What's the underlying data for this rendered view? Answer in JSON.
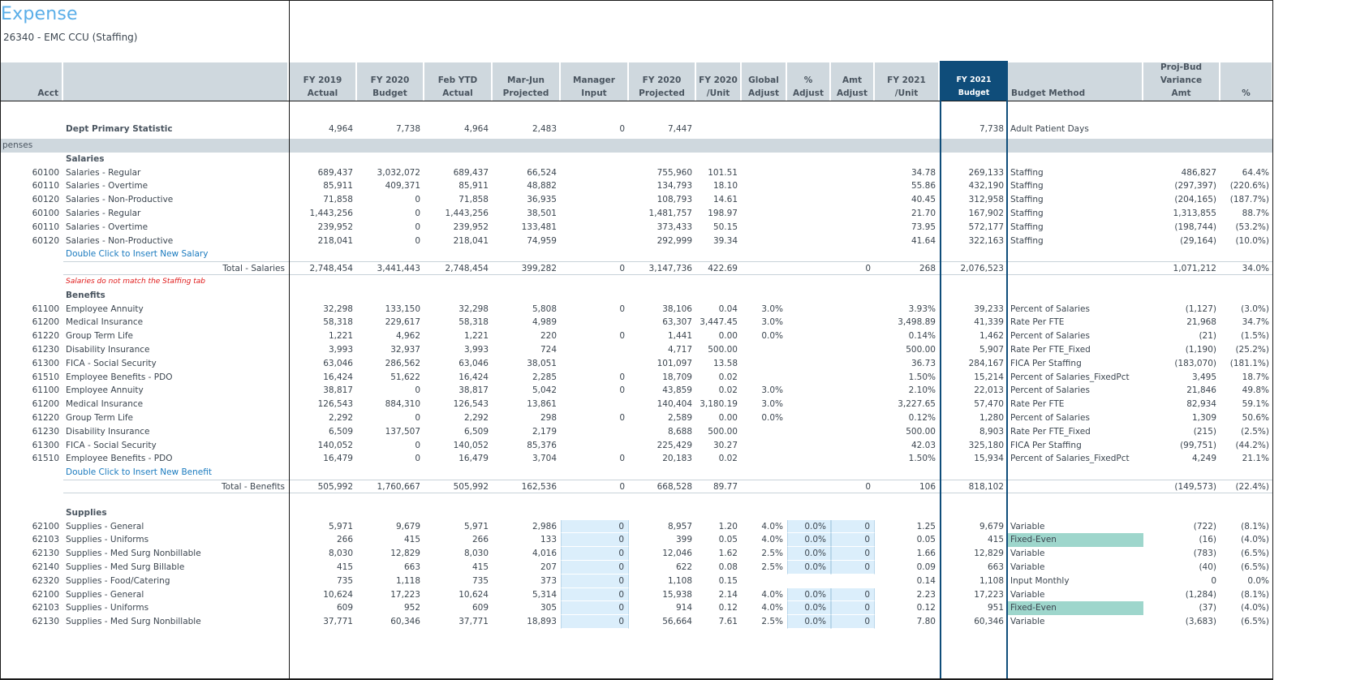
{
  "title": "Expense",
  "subtitle": "26340 - EMC CCU (Staffing)",
  "colors": {
    "title": "#5aaee8",
    "header_bg": "#cfd8de",
    "selected_header_bg": "#0f4d7a",
    "input_cell_bg": "#dbeefb",
    "fixed_even_bg": "#9ed6cc",
    "link": "#1b7bbf",
    "warning": "#e01b1b"
  },
  "columns": [
    {
      "key": "acct",
      "label1": "",
      "label2": "Acct"
    },
    {
      "key": "desc",
      "label1": "",
      "label2": ""
    },
    {
      "key": "fy19",
      "label1": "FY 2019",
      "label2": "Actual"
    },
    {
      "key": "fy20b",
      "label1": "FY 2020",
      "label2": "Budget"
    },
    {
      "key": "feb",
      "label1": "Feb YTD",
      "label2": "Actual"
    },
    {
      "key": "marjun",
      "label1": "Mar-Jun",
      "label2": "Projected"
    },
    {
      "key": "mgr",
      "label1": "Manager",
      "label2": "Input"
    },
    {
      "key": "fy20p",
      "label1": "FY 2020",
      "label2": "Projected"
    },
    {
      "key": "fy20u",
      "label1": "FY 2020",
      "label2": "/Unit"
    },
    {
      "key": "gadj",
      "label1": "Global",
      "label2": "Adjust"
    },
    {
      "key": "padj",
      "label1": "%",
      "label2": "Adjust"
    },
    {
      "key": "aadj",
      "label1": "Amt",
      "label2": "Adjust"
    },
    {
      "key": "fy21u",
      "label1": "FY 2021",
      "label2": "/Unit"
    },
    {
      "key": "fy21b",
      "label1": "FY 2021",
      "label2": "Budget"
    },
    {
      "key": "method",
      "label1": "",
      "label2": "Budget Method"
    },
    {
      "key": "var",
      "label0": "Proj-Bud",
      "label1": "Variance",
      "label2": "Amt"
    },
    {
      "key": "varp",
      "label1": "",
      "label2": "%"
    }
  ],
  "primary_statistic": {
    "label": "Dept Primary Statistic",
    "fy19": "4,964",
    "fy20b": "7,738",
    "feb": "4,964",
    "marjun": "2,483",
    "mgr": "0",
    "fy20p": "7,447",
    "fy21b": "7,738",
    "method": "Adult Patient Days"
  },
  "band_label": "penses",
  "salaries": {
    "title": "Salaries",
    "rows": [
      {
        "acct": "60100",
        "desc": "Salaries - Regular",
        "fy19": "689,437",
        "fy20b": "3,032,072",
        "feb": "689,437",
        "marjun": "66,524",
        "mgr": "",
        "fy20p": "755,960",
        "fy20u": "101.51",
        "gadj": "",
        "padj": "",
        "aadj": "",
        "fy21u": "34.78",
        "fy21b": "269,133",
        "method": "Staffing",
        "var": "486,827",
        "varp": "64.4%"
      },
      {
        "acct": "60110",
        "desc": "Salaries - Overtime",
        "fy19": "85,911",
        "fy20b": "409,371",
        "feb": "85,911",
        "marjun": "48,882",
        "mgr": "",
        "fy20p": "134,793",
        "fy20u": "18.10",
        "gadj": "",
        "padj": "",
        "aadj": "",
        "fy21u": "55.86",
        "fy21b": "432,190",
        "method": "Staffing",
        "var": "(297,397)",
        "varp": "(220.6%)"
      },
      {
        "acct": "60120",
        "desc": "Salaries - Non-Productive",
        "fy19": "71,858",
        "fy20b": "0",
        "feb": "71,858",
        "marjun": "36,935",
        "mgr": "",
        "fy20p": "108,793",
        "fy20u": "14.61",
        "gadj": "",
        "padj": "",
        "aadj": "",
        "fy21u": "40.45",
        "fy21b": "312,958",
        "method": "Staffing",
        "var": "(204,165)",
        "varp": "(187.7%)"
      },
      {
        "acct": "60100",
        "desc": "Salaries - Regular",
        "fy19": "1,443,256",
        "fy20b": "0",
        "feb": "1,443,256",
        "marjun": "38,501",
        "mgr": "",
        "fy20p": "1,481,757",
        "fy20u": "198.97",
        "gadj": "",
        "padj": "",
        "aadj": "",
        "fy21u": "21.70",
        "fy21b": "167,902",
        "method": "Staffing",
        "var": "1,313,855",
        "varp": "88.7%"
      },
      {
        "acct": "60110",
        "desc": "Salaries - Overtime",
        "fy19": "239,952",
        "fy20b": "0",
        "feb": "239,952",
        "marjun": "133,481",
        "mgr": "",
        "fy20p": "373,433",
        "fy20u": "50.15",
        "gadj": "",
        "padj": "",
        "aadj": "",
        "fy21u": "73.95",
        "fy21b": "572,177",
        "method": "Staffing",
        "var": "(198,744)",
        "varp": "(53.2%)"
      },
      {
        "acct": "60120",
        "desc": "Salaries - Non-Productive",
        "fy19": "218,041",
        "fy20b": "0",
        "feb": "218,041",
        "marjun": "74,959",
        "mgr": "",
        "fy20p": "292,999",
        "fy20u": "39.34",
        "gadj": "",
        "padj": "",
        "aadj": "",
        "fy21u": "41.64",
        "fy21b": "322,163",
        "method": "Staffing",
        "var": "(29,164)",
        "varp": "(10.0%)"
      }
    ],
    "insert_link": "Double Click to Insert New Salary",
    "total": {
      "desc": "Total - Salaries",
      "fy19": "2,748,454",
      "fy20b": "3,441,443",
      "feb": "2,748,454",
      "marjun": "399,282",
      "mgr": "0",
      "fy20p": "3,147,736",
      "fy20u": "422.69",
      "aadj": "0",
      "fy21u": "268",
      "fy21b": "2,076,523",
      "var": "1,071,212",
      "varp": "34.0%"
    },
    "warning": "Salaries do not match the Staffing tab"
  },
  "benefits": {
    "title": "Benefits",
    "rows": [
      {
        "acct": "61100",
        "desc": "Employee Annuity",
        "fy19": "32,298",
        "fy20b": "133,150",
        "feb": "32,298",
        "marjun": "5,808",
        "mgr": "0",
        "fy20p": "38,106",
        "fy20u": "0.04",
        "gadj": "3.0%",
        "padj": "",
        "aadj": "",
        "fy21u": "3.93%",
        "fy21b": "39,233",
        "method": "Percent of Salaries",
        "var": "(1,127)",
        "varp": "(3.0%)"
      },
      {
        "acct": "61200",
        "desc": "Medical Insurance",
        "fy19": "58,318",
        "fy20b": "229,617",
        "feb": "58,318",
        "marjun": "4,989",
        "mgr": "",
        "fy20p": "63,307",
        "fy20u": "3,447.45",
        "gadj": "3.0%",
        "padj": "",
        "aadj": "",
        "fy21u": "3,498.89",
        "fy21b": "41,339",
        "method": "Rate Per FTE",
        "var": "21,968",
        "varp": "34.7%"
      },
      {
        "acct": "61220",
        "desc": "Group Term Life",
        "fy19": "1,221",
        "fy20b": "4,962",
        "feb": "1,221",
        "marjun": "220",
        "mgr": "0",
        "fy20p": "1,441",
        "fy20u": "0.00",
        "gadj": "0.0%",
        "padj": "",
        "aadj": "",
        "fy21u": "0.14%",
        "fy21b": "1,462",
        "method": "Percent of Salaries",
        "var": "(21)",
        "varp": "(1.5%)"
      },
      {
        "acct": "61230",
        "desc": "Disability Insurance",
        "fy19": "3,993",
        "fy20b": "32,937",
        "feb": "3,993",
        "marjun": "724",
        "mgr": "",
        "fy20p": "4,717",
        "fy20u": "500.00",
        "gadj": "",
        "padj": "",
        "aadj": "",
        "fy21u": "500.00",
        "fy21b": "5,907",
        "method": "Rate Per FTE_Fixed",
        "var": "(1,190)",
        "varp": "(25.2%)"
      },
      {
        "acct": "61300",
        "desc": "FICA - Social Security",
        "fy19": "63,046",
        "fy20b": "286,562",
        "feb": "63,046",
        "marjun": "38,051",
        "mgr": "",
        "fy20p": "101,097",
        "fy20u": "13.58",
        "gadj": "",
        "padj": "",
        "aadj": "",
        "fy21u": "36.73",
        "fy21b": "284,167",
        "method": "FICA Per Staffing",
        "var": "(183,070)",
        "varp": "(181.1%)"
      },
      {
        "acct": "61510",
        "desc": "Employee Benefits - PDO",
        "fy19": "16,424",
        "fy20b": "51,622",
        "feb": "16,424",
        "marjun": "2,285",
        "mgr": "0",
        "fy20p": "18,709",
        "fy20u": "0.02",
        "gadj": "",
        "padj": "",
        "aadj": "",
        "fy21u": "1.50%",
        "fy21b": "15,214",
        "method": "Percent of Salaries_FixedPct",
        "var": "3,495",
        "varp": "18.7%"
      },
      {
        "acct": "61100",
        "desc": "Employee Annuity",
        "fy19": "38,817",
        "fy20b": "0",
        "feb": "38,817",
        "marjun": "5,042",
        "mgr": "0",
        "fy20p": "43,859",
        "fy20u": "0.02",
        "gadj": "3.0%",
        "padj": "",
        "aadj": "",
        "fy21u": "2.10%",
        "fy21b": "22,013",
        "method": "Percent of Salaries",
        "var": "21,846",
        "varp": "49.8%"
      },
      {
        "acct": "61200",
        "desc": "Medical Insurance",
        "fy19": "126,543",
        "fy20b": "884,310",
        "feb": "126,543",
        "marjun": "13,861",
        "mgr": "",
        "fy20p": "140,404",
        "fy20u": "3,180.19",
        "gadj": "3.0%",
        "padj": "",
        "aadj": "",
        "fy21u": "3,227.65",
        "fy21b": "57,470",
        "method": "Rate Per FTE",
        "var": "82,934",
        "varp": "59.1%"
      },
      {
        "acct": "61220",
        "desc": "Group Term Life",
        "fy19": "2,292",
        "fy20b": "0",
        "feb": "2,292",
        "marjun": "298",
        "mgr": "0",
        "fy20p": "2,589",
        "fy20u": "0.00",
        "gadj": "0.0%",
        "padj": "",
        "aadj": "",
        "fy21u": "0.12%",
        "fy21b": "1,280",
        "method": "Percent of Salaries",
        "var": "1,309",
        "varp": "50.6%"
      },
      {
        "acct": "61230",
        "desc": "Disability Insurance",
        "fy19": "6,509",
        "fy20b": "137,507",
        "feb": "6,509",
        "marjun": "2,179",
        "mgr": "",
        "fy20p": "8,688",
        "fy20u": "500.00",
        "gadj": "",
        "padj": "",
        "aadj": "",
        "fy21u": "500.00",
        "fy21b": "8,903",
        "method": "Rate Per FTE_Fixed",
        "var": "(215)",
        "varp": "(2.5%)"
      },
      {
        "acct": "61300",
        "desc": "FICA - Social Security",
        "fy19": "140,052",
        "fy20b": "0",
        "feb": "140,052",
        "marjun": "85,376",
        "mgr": "",
        "fy20p": "225,429",
        "fy20u": "30.27",
        "gadj": "",
        "padj": "",
        "aadj": "",
        "fy21u": "42.03",
        "fy21b": "325,180",
        "method": "FICA Per Staffing",
        "var": "(99,751)",
        "varp": "(44.2%)"
      },
      {
        "acct": "61510",
        "desc": "Employee Benefits - PDO",
        "fy19": "16,479",
        "fy20b": "0",
        "feb": "16,479",
        "marjun": "3,704",
        "mgr": "0",
        "fy20p": "20,183",
        "fy20u": "0.02",
        "gadj": "",
        "padj": "",
        "aadj": "",
        "fy21u": "1.50%",
        "fy21b": "15,934",
        "method": "Percent of Salaries_FixedPct",
        "var": "4,249",
        "varp": "21.1%"
      }
    ],
    "insert_link": "Double Click to Insert New Benefit",
    "total": {
      "desc": "Total - Benefits",
      "fy19": "505,992",
      "fy20b": "1,760,667",
      "feb": "505,992",
      "marjun": "162,536",
      "mgr": "0",
      "fy20p": "668,528",
      "fy20u": "89.77",
      "aadj": "0",
      "fy21u": "106",
      "fy21b": "818,102",
      "var": "(149,573)",
      "varp": "(22.4%)"
    }
  },
  "supplies": {
    "title": "Supplies",
    "rows": [
      {
        "acct": "62100",
        "desc": "Supplies - General",
        "fy19": "5,971",
        "fy20b": "9,679",
        "feb": "5,971",
        "marjun": "2,986",
        "mgr": "0",
        "fy20p": "8,957",
        "fy20u": "1.20",
        "gadj": "4.0%",
        "padj": "0.0%",
        "aadj": "0",
        "fy21u": "1.25",
        "fy21b": "9,679",
        "method": "Variable",
        "var": "(722)",
        "varp": "(8.1%)",
        "adj_inputs": true
      },
      {
        "acct": "62103",
        "desc": "Supplies - Uniforms",
        "fy19": "266",
        "fy20b": "415",
        "feb": "266",
        "marjun": "133",
        "mgr": "0",
        "fy20p": "399",
        "fy20u": "0.05",
        "gadj": "4.0%",
        "padj": "0.0%",
        "aadj": "0",
        "fy21u": "0.05",
        "fy21b": "415",
        "method": "Fixed-Even",
        "var": "(16)",
        "varp": "(4.0%)",
        "adj_inputs": true,
        "highlight": true
      },
      {
        "acct": "62130",
        "desc": "Supplies - Med Surg Nonbillable",
        "fy19": "8,030",
        "fy20b": "12,829",
        "feb": "8,030",
        "marjun": "4,016",
        "mgr": "0",
        "fy20p": "12,046",
        "fy20u": "1.62",
        "gadj": "2.5%",
        "padj": "0.0%",
        "aadj": "0",
        "fy21u": "1.66",
        "fy21b": "12,829",
        "method": "Variable",
        "var": "(783)",
        "varp": "(6.5%)",
        "adj_inputs": true
      },
      {
        "acct": "62140",
        "desc": "Supplies - Med Surg Billable",
        "fy19": "415",
        "fy20b": "663",
        "feb": "415",
        "marjun": "207",
        "mgr": "0",
        "fy20p": "622",
        "fy20u": "0.08",
        "gadj": "2.5%",
        "padj": "0.0%",
        "aadj": "0",
        "fy21u": "0.09",
        "fy21b": "663",
        "method": "Variable",
        "var": "(40)",
        "varp": "(6.5%)",
        "adj_inputs": true
      },
      {
        "acct": "62320",
        "desc": "Supplies - Food/Catering",
        "fy19": "735",
        "fy20b": "1,118",
        "feb": "735",
        "marjun": "373",
        "mgr": "0",
        "fy20p": "1,108",
        "fy20u": "0.15",
        "gadj": "",
        "padj": "",
        "aadj": "",
        "fy21u": "0.14",
        "fy21b": "1,108",
        "method": "Input Monthly",
        "var": "0",
        "varp": "0.0%",
        "adj_inputs": false
      },
      {
        "acct": "62100",
        "desc": "Supplies - General",
        "fy19": "10,624",
        "fy20b": "17,223",
        "feb": "10,624",
        "marjun": "5,314",
        "mgr": "0",
        "fy20p": "15,938",
        "fy20u": "2.14",
        "gadj": "4.0%",
        "padj": "0.0%",
        "aadj": "0",
        "fy21u": "2.23",
        "fy21b": "17,223",
        "method": "Variable",
        "var": "(1,284)",
        "varp": "(8.1%)",
        "adj_inputs": true
      },
      {
        "acct": "62103",
        "desc": "Supplies - Uniforms",
        "fy19": "609",
        "fy20b": "952",
        "feb": "609",
        "marjun": "305",
        "mgr": "0",
        "fy20p": "914",
        "fy20u": "0.12",
        "gadj": "4.0%",
        "padj": "0.0%",
        "aadj": "0",
        "fy21u": "0.12",
        "fy21b": "951",
        "method": "Fixed-Even",
        "var": "(37)",
        "varp": "(4.0%)",
        "adj_inputs": true,
        "highlight": true
      },
      {
        "acct": "62130",
        "desc": "Supplies - Med Surg Nonbillable",
        "fy19": "37,771",
        "fy20b": "60,346",
        "feb": "37,771",
        "marjun": "18,893",
        "mgr": "0",
        "fy20p": "56,664",
        "fy20u": "7.61",
        "gadj": "2.5%",
        "padj": "0.0%",
        "aadj": "0",
        "fy21u": "7.80",
        "fy21b": "60,346",
        "method": "Variable",
        "var": "(3,683)",
        "varp": "(6.5%)",
        "adj_inputs": true
      }
    ]
  }
}
